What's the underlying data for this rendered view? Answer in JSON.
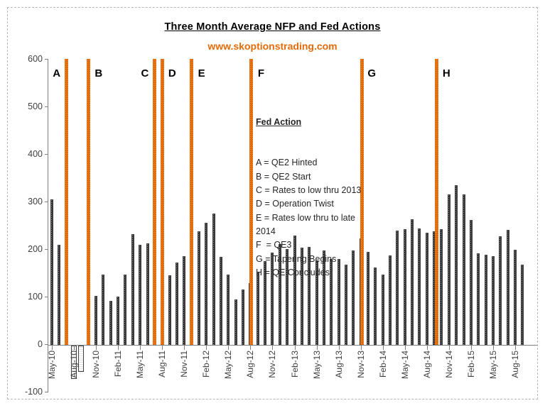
{
  "header": {
    "title": "Three Month Average NFP and Fed Actions",
    "subtitle": "www.skoptionstrading.com"
  },
  "legend": {
    "heading": "Fed Action",
    "lines": [
      "A = QE2 Hinted",
      "B = QE2 Start",
      "C = Rates to low thru 2013",
      "D = Operation Twist",
      "E = Rates low thru to late",
      "2014",
      "F  = QE3",
      "G = Tapering Begins",
      "H = QE Concludes"
    ]
  },
  "fed_actions": [
    {
      "letter": "A",
      "month_index": 2.0,
      "label_side": "left"
    },
    {
      "letter": "B",
      "month_index": 5.0,
      "label_side": "right"
    },
    {
      "letter": "C",
      "month_index": 14.0,
      "label_side": "left"
    },
    {
      "letter": "D",
      "month_index": 15.0,
      "label_side": "right"
    },
    {
      "letter": "E",
      "month_index": 19.0,
      "label_side": "right"
    },
    {
      "letter": "F",
      "month_index": 27.1,
      "label_side": "right"
    },
    {
      "letter": "G",
      "month_index": 42.15,
      "label_side": "right"
    },
    {
      "letter": "H",
      "month_index": 52.3,
      "label_side": "right"
    }
  ],
  "colors": {
    "accent_orange": "#E36C09",
    "bar_dark": "#3F3F3F",
    "axis_gray": "#808080"
  },
  "chart_data": {
    "type": "bar",
    "title": "Three Month Average NFP and Fed Actions",
    "xlabel": "",
    "ylabel": "",
    "ylim": [
      -100,
      600
    ],
    "y_ticks": [
      600,
      500,
      400,
      300,
      200,
      100,
      0,
      -100
    ],
    "x_tick_every": 3,
    "grid": false,
    "legend_position": "upper-middle",
    "x": [
      "May-10",
      "Jun-10",
      "Jul-10",
      "Aug-10",
      "Sep-10",
      "Oct-10",
      "Nov-10",
      "Dec-10",
      "Jan-11",
      "Feb-11",
      "Mar-11",
      "Apr-11",
      "May-11",
      "Jun-11",
      "Jul-11",
      "Aug-11",
      "Sep-11",
      "Oct-11",
      "Nov-11",
      "Dec-11",
      "Jan-12",
      "Feb-12",
      "Mar-12",
      "Apr-12",
      "May-12",
      "Jun-12",
      "Jul-12",
      "Aug-12",
      "Sep-12",
      "Oct-12",
      "Nov-12",
      "Dec-12",
      "Jan-13",
      "Feb-13",
      "Mar-13",
      "Apr-13",
      "May-13",
      "Jun-13",
      "Jul-13",
      "Aug-13",
      "Sep-13",
      "Oct-13",
      "Nov-13",
      "Dec-13",
      "Jan-14",
      "Feb-14",
      "Mar-14",
      "Apr-14",
      "May-14",
      "Jun-14",
      "Jul-14",
      "Aug-14",
      "Sep-14",
      "Oct-14",
      "Nov-14",
      "Dec-14",
      "Jan-15",
      "Feb-15",
      "Mar-15",
      "Apr-15",
      "May-15",
      "Jun-15",
      "Jul-15",
      "Aug-15",
      "Sep-15"
    ],
    "values": [
      305,
      210,
      108,
      -70,
      -55,
      45,
      103,
      147,
      93,
      102,
      148,
      232,
      210,
      214,
      140,
      145,
      146,
      173,
      187,
      178,
      238,
      257,
      276,
      185,
      147,
      95,
      117,
      130,
      154,
      176,
      194,
      212,
      202,
      229,
      205,
      206,
      178,
      199,
      181,
      181,
      169,
      199,
      223,
      195,
      163,
      148,
      188,
      240,
      243,
      264,
      245,
      236,
      238,
      243,
      316,
      336,
      316,
      262,
      192,
      189,
      187,
      228,
      242,
      200,
      168
    ]
  }
}
